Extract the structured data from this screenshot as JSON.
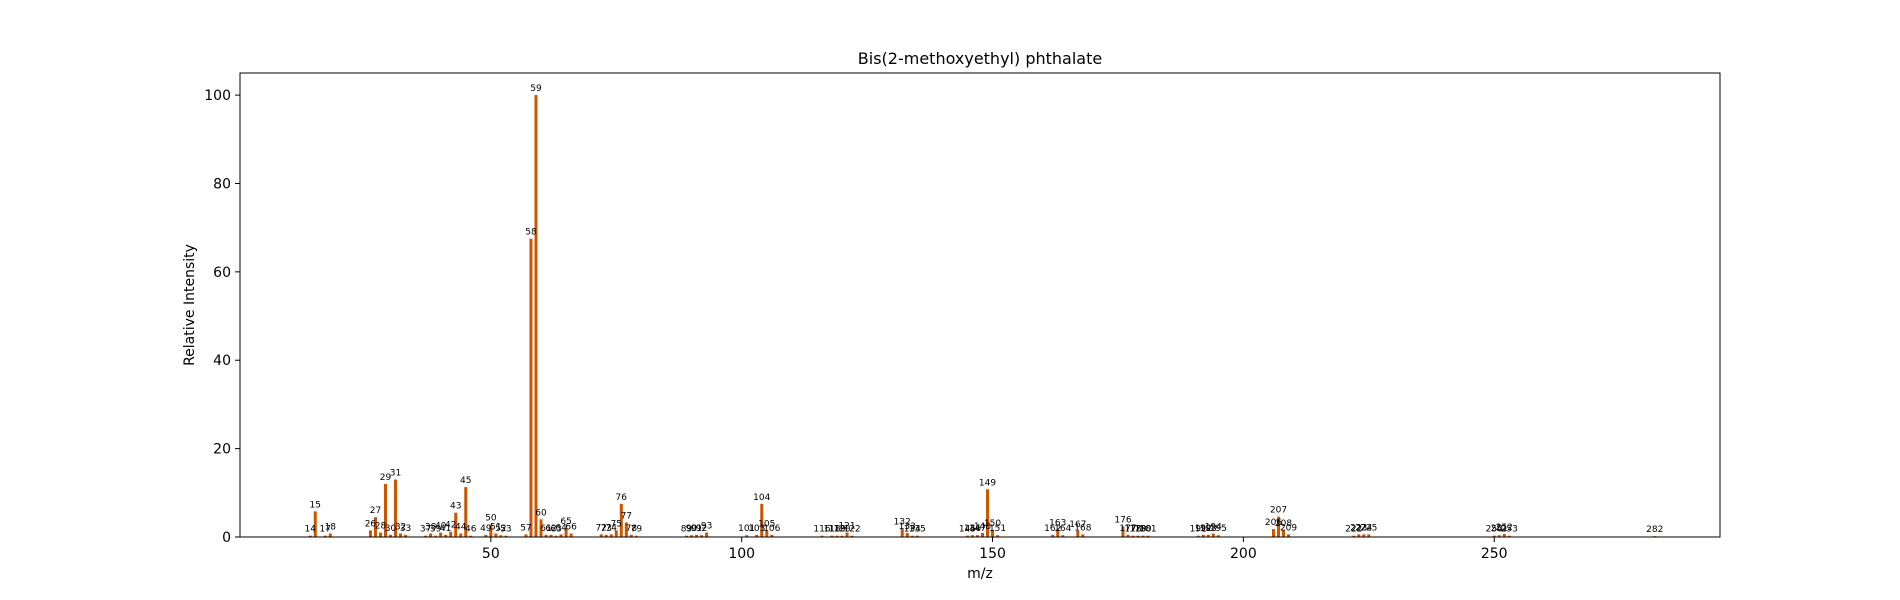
{
  "chart_data": {
    "type": "bar",
    "title": "Bis(2-methoxyethyl) phthalate",
    "xlabel": "m/z",
    "ylabel": "Relative Intensity",
    "xlim": [
      0,
      295
    ],
    "ylim": [
      0,
      105
    ],
    "xticks": [
      50,
      100,
      150,
      200,
      250
    ],
    "yticks": [
      0,
      20,
      40,
      60,
      80,
      100
    ],
    "grid": false,
    "bar_color": "#cc5500",
    "series": [
      {
        "x": [
          14,
          15,
          17,
          18,
          26,
          27,
          28,
          29,
          30,
          31,
          32,
          33,
          37,
          38,
          39,
          40,
          41,
          42,
          43,
          44,
          45,
          46,
          49,
          50,
          51,
          52,
          53,
          57,
          58,
          59,
          60,
          61,
          62,
          63,
          64,
          65,
          66,
          72,
          73,
          74,
          75,
          76,
          77,
          78,
          79,
          89,
          90,
          91,
          92,
          93,
          101,
          103,
          104,
          105,
          106,
          116,
          118,
          119,
          120,
          121,
          122,
          132,
          133,
          134,
          135,
          145,
          146,
          147,
          148,
          149,
          150,
          151,
          162,
          163,
          164,
          167,
          168,
          176,
          177,
          178,
          179,
          180,
          181,
          191,
          192,
          193,
          194,
          195,
          206,
          207,
          208,
          209,
          222,
          223,
          224,
          225,
          250,
          251,
          252,
          253,
          282
        ],
        "values": [
          0.3,
          5.8,
          0.3,
          0.8,
          1.5,
          4.5,
          1.0,
          12.0,
          0.5,
          13.0,
          0.8,
          0.5,
          0.3,
          0.8,
          0.3,
          1.0,
          0.5,
          1.2,
          5.5,
          0.8,
          11.3,
          0.3,
          0.5,
          2.8,
          0.8,
          0.4,
          0.3,
          0.6,
          67.5,
          100.0,
          4.0,
          0.5,
          0.5,
          0.3,
          0.6,
          2.0,
          0.8,
          0.6,
          0.5,
          0.6,
          1.5,
          7.5,
          3.3,
          0.5,
          0.3,
          0.3,
          0.4,
          0.5,
          0.4,
          1.0,
          0.4,
          0.5,
          7.5,
          1.5,
          0.5,
          0.3,
          0.3,
          0.3,
          0.3,
          1.0,
          0.3,
          1.9,
          0.9,
          0.3,
          0.3,
          0.3,
          0.4,
          0.4,
          0.9,
          10.8,
          1.6,
          0.4,
          0.5,
          1.7,
          0.4,
          1.4,
          0.6,
          2.4,
          0.5,
          0.3,
          0.3,
          0.3,
          0.3,
          0.3,
          0.5,
          0.5,
          0.8,
          0.4,
          1.8,
          4.6,
          1.6,
          0.6,
          0.3,
          0.6,
          0.6,
          0.6,
          0.3,
          0.4,
          0.7,
          0.3,
          0.2
        ]
      }
    ]
  }
}
